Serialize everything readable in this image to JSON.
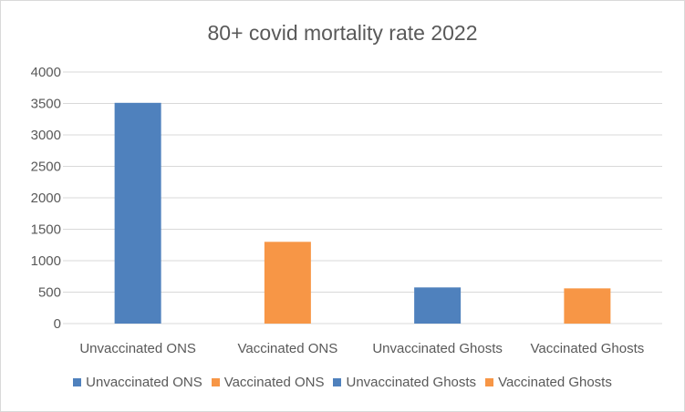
{
  "chart_data": {
    "type": "bar",
    "title": "80+ covid mortality rate 2022",
    "categories": [
      "Unvaccinated ONS",
      "Vaccinated ONS",
      "Unvaccinated Ghosts",
      "Vaccinated Ghosts"
    ],
    "values": [
      3510,
      1300,
      575,
      560
    ],
    "colors": [
      "#4f81bd",
      "#f79646",
      "#4f81bd",
      "#f79646"
    ],
    "ylim": [
      0,
      4000
    ],
    "yticks": [
      0,
      500,
      1000,
      1500,
      2000,
      2500,
      3000,
      3500,
      4000
    ],
    "grid": true,
    "legend_position": "bottom",
    "legend": [
      {
        "label": "Unvaccinated ONS",
        "color": "#4f81bd"
      },
      {
        "label": "Vaccinated ONS",
        "color": "#f79646"
      },
      {
        "label": "Unvaccinated Ghosts",
        "color": "#4f81bd"
      },
      {
        "label": "Vaccinated Ghosts",
        "color": "#f79646"
      }
    ]
  }
}
